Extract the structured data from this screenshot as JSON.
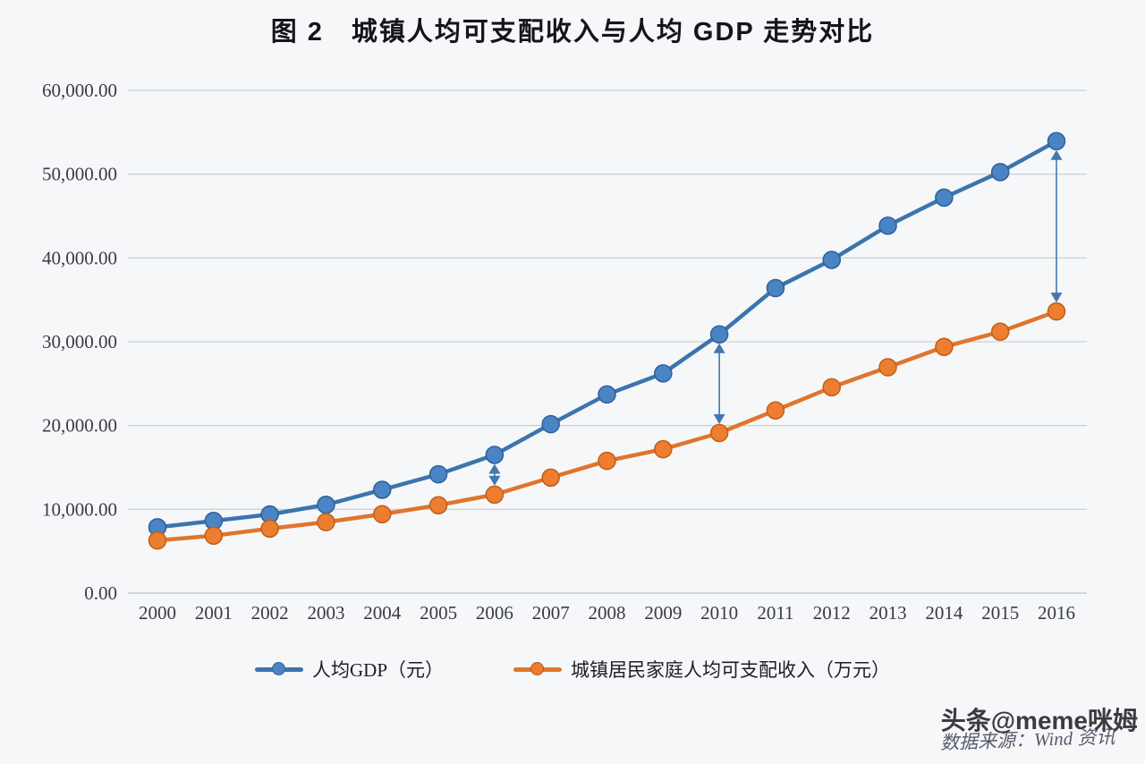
{
  "title": "图 2　城镇人均可支配收入与人均 GDP 走势对比",
  "watermark": "头条@meme咪姆",
  "source": "数据来源：Wind 资讯",
  "colors": {
    "gdp_line": "#3c74ad",
    "gdp_marker": "#4a84c4",
    "gdp_marker_stroke": "#2f5f99",
    "income_line": "#e0752c",
    "income_marker": "#ed7d31",
    "income_marker_stroke": "#c05f15",
    "arrow": "#4577ad",
    "grid": "#c3cad1",
    "tick_text": "#3a3a4a"
  },
  "chart_data": {
    "type": "line",
    "x": [
      2000,
      2001,
      2002,
      2003,
      2004,
      2005,
      2006,
      2007,
      2008,
      2009,
      2010,
      2011,
      2012,
      2013,
      2014,
      2015,
      2016
    ],
    "series": [
      {
        "name": "人均GDP（元）",
        "values": [
          7858,
          8622,
          9398,
          10542,
          12336,
          14185,
          16500,
          20169,
          23708,
          26222,
          30876,
          36403,
          39771,
          43852,
          47203,
          50251,
          53935
        ]
      },
      {
        "name": "城镇居民家庭人均可支配收入（万元）",
        "values": [
          6280,
          6860,
          7703,
          8472,
          9422,
          10493,
          11759,
          13786,
          15781,
          17175,
          19109,
          21810,
          24565,
          26955,
          29381,
          31195,
          33616
        ]
      }
    ],
    "title": "图 2　城镇人均可支配收入与人均 GDP 走势对比",
    "xlabel": "",
    "ylabel": "",
    "ylim": [
      0,
      60000
    ],
    "y_tick_values": [
      0,
      10000,
      20000,
      30000,
      40000,
      50000,
      60000
    ],
    "y_tick_labels": [
      "0.00",
      "10,000.00",
      "20,000.00",
      "30,000.00",
      "40,000.00",
      "50,000.00",
      "60,000.00"
    ],
    "grid": true,
    "legend_position": "bottom",
    "annotations": [
      {
        "type": "gap-arrow",
        "year": 2006
      },
      {
        "type": "gap-arrow",
        "year": 2010
      },
      {
        "type": "gap-arrow",
        "year": 2016
      }
    ]
  }
}
